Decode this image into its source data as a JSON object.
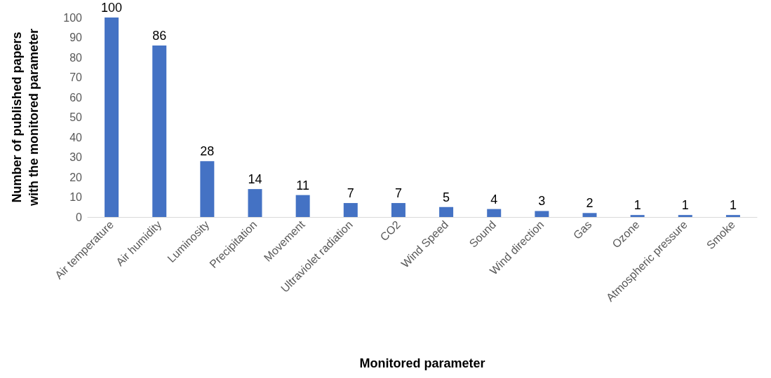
{
  "chart_data": {
    "type": "bar",
    "xlabel": "Monitored parameter",
    "ylabel": "Number of published papers with the monitored parameter",
    "categories": [
      "Air temperature",
      "Air humidity",
      "Luminosity",
      "Precipitation",
      "Movement",
      "Ultraviolet radiation",
      "CO2",
      "Wind Speed",
      "Sound",
      "Wind direction",
      "Gas",
      "Ozone",
      "Atmospheric pressure",
      "Smoke"
    ],
    "values": [
      100,
      86,
      28,
      14,
      11,
      7,
      7,
      5,
      4,
      3,
      2,
      1,
      1,
      1
    ],
    "color": "#4472c4",
    "ylim": [
      0,
      100
    ],
    "yticks": [
      0,
      10,
      20,
      30,
      40,
      50,
      60,
      70,
      80,
      90,
      100
    ],
    "grid": false,
    "data_labels": true
  }
}
